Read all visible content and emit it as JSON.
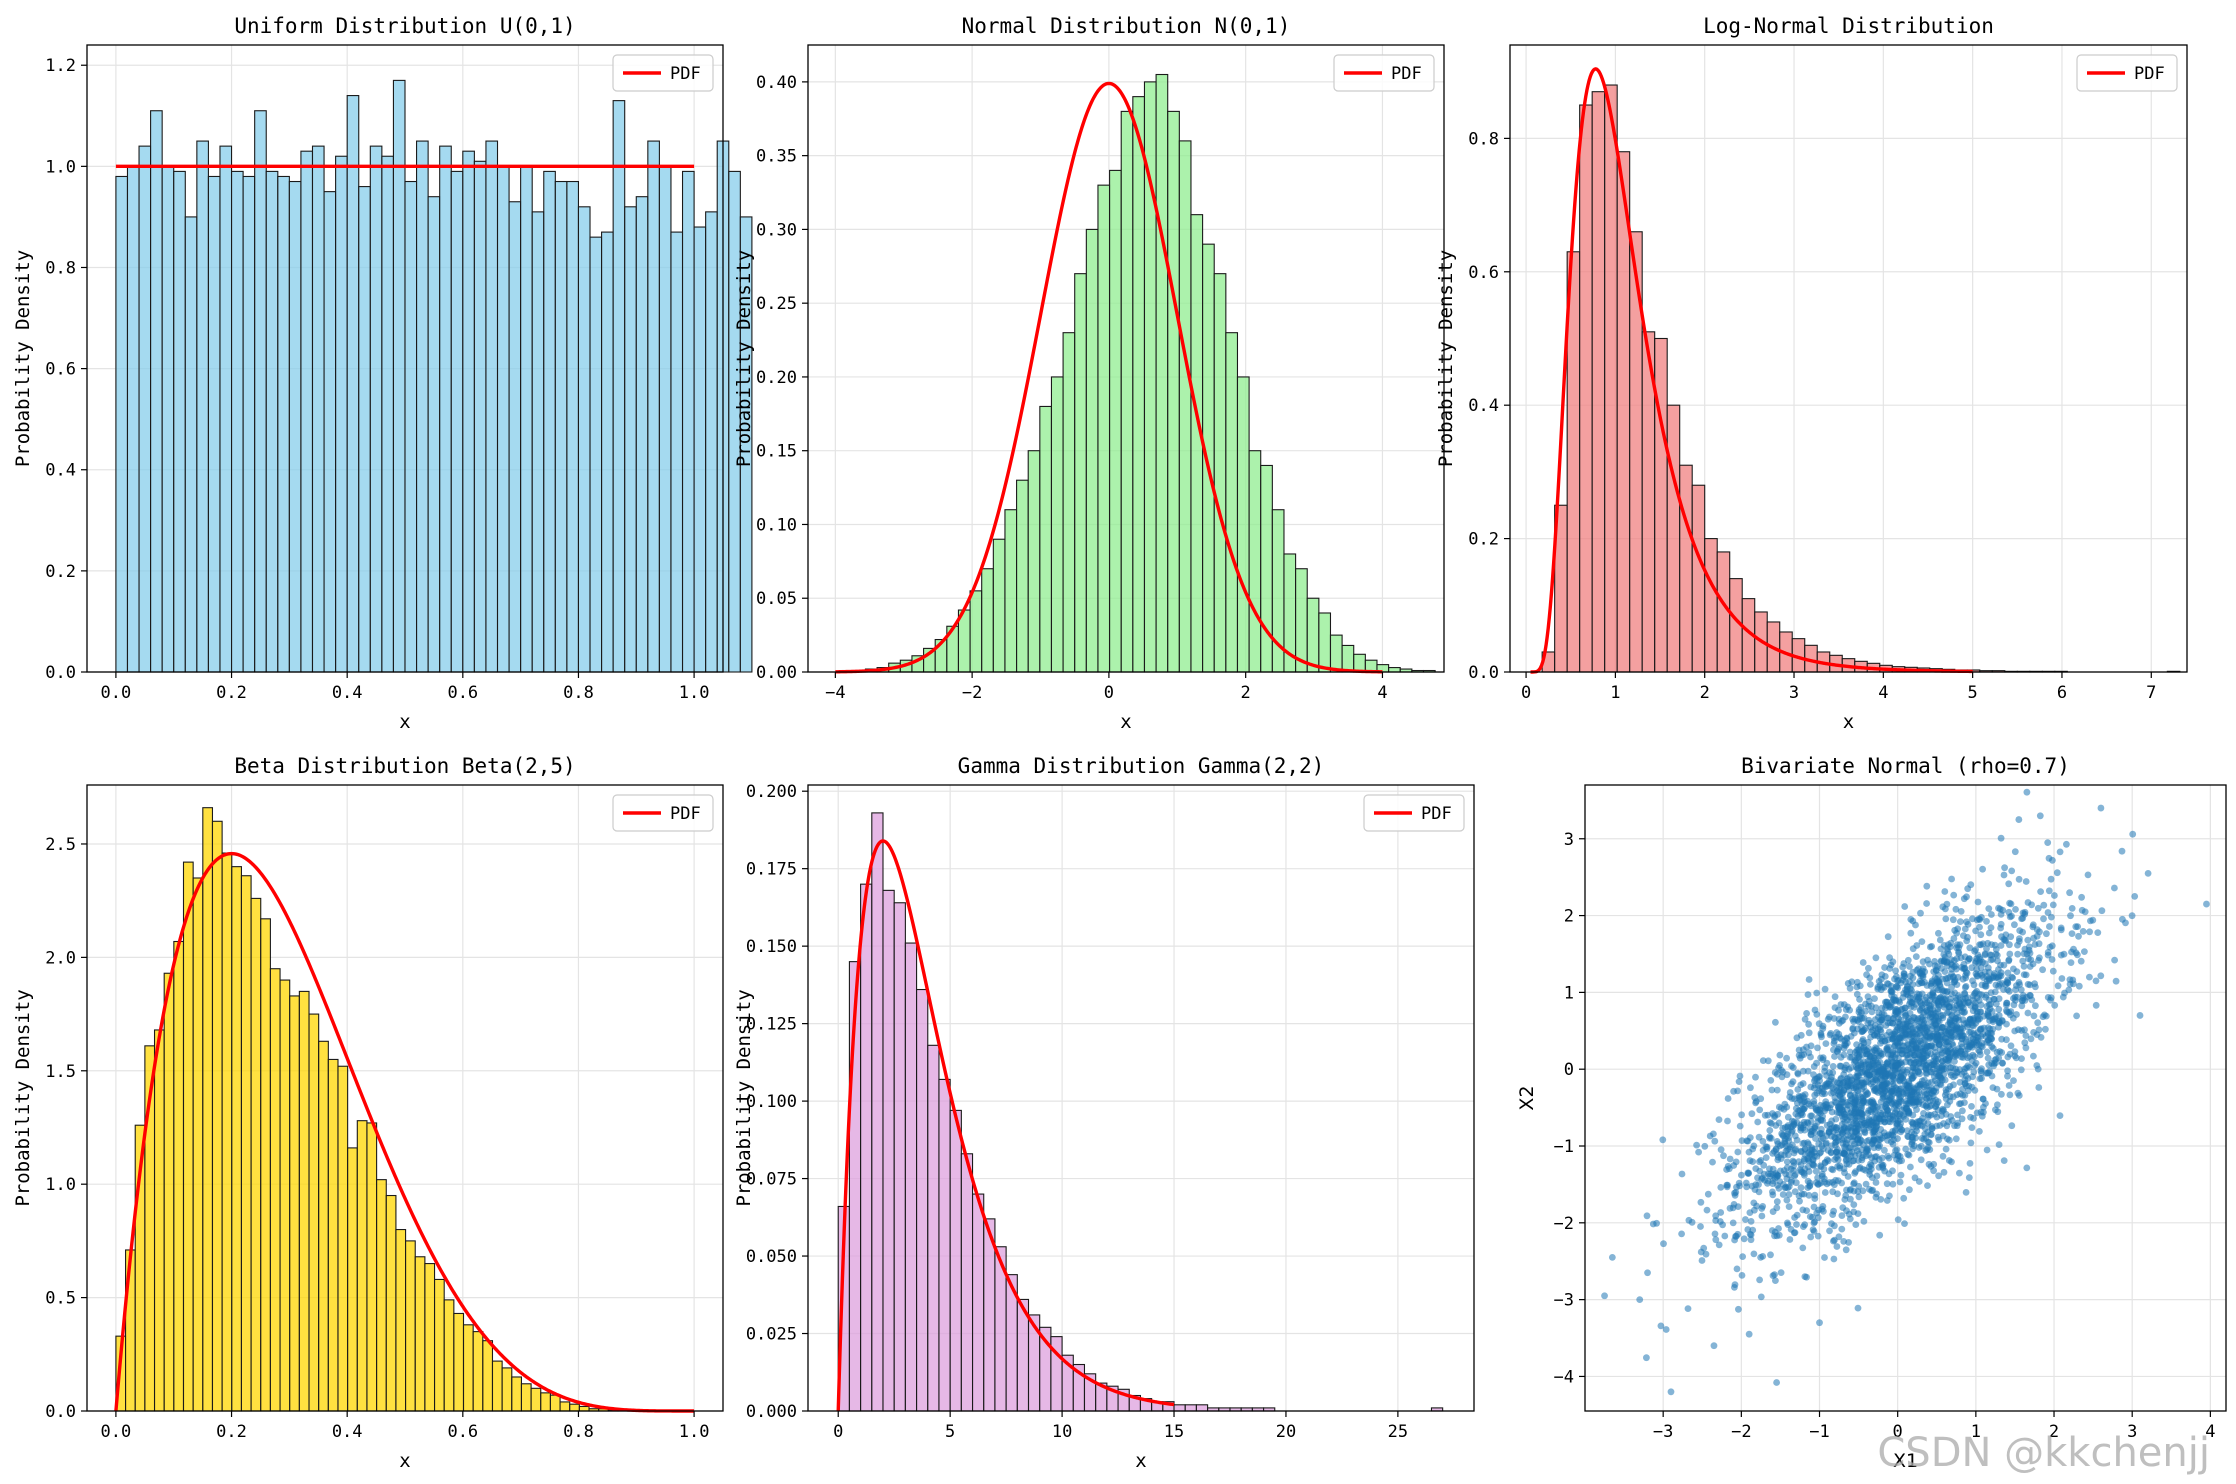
{
  "watermark": "CSDN @kkchenjj",
  "chart_data": [
    {
      "id": "uniform",
      "type": "bar",
      "title": "Uniform Distribution U(0,1)",
      "xlabel": "x",
      "ylabel": "Probability Density",
      "xlim": [
        -0.05,
        1.05
      ],
      "ylim": [
        0,
        1.24
      ],
      "xticks": [
        0,
        0.2,
        0.4,
        0.6,
        0.8,
        1.0
      ],
      "xtick_labels": [
        "0.0",
        "0.2",
        "0.4",
        "0.6",
        "0.8",
        "1.0"
      ],
      "yticks": [
        0,
        0.2,
        0.4,
        0.6,
        0.8,
        1.0,
        1.2
      ],
      "ytick_labels": [
        "0.0",
        "0.2",
        "0.4",
        "0.6",
        "0.8",
        "1.0",
        "1.2"
      ],
      "bin_start": 0,
      "bin_width": 0.02,
      "values": [
        0.98,
        1.0,
        1.04,
        1.11,
        1.0,
        0.99,
        0.9,
        1.05,
        0.98,
        1.04,
        0.99,
        0.98,
        1.11,
        0.99,
        0.98,
        0.97,
        1.03,
        1.04,
        0.95,
        1.02,
        1.14,
        0.96,
        1.04,
        1.02,
        1.17,
        0.97,
        1.05,
        0.94,
        1.04,
        0.99,
        1.03,
        1.01,
        1.05,
        1.0,
        0.93,
        1.0,
        0.91,
        0.99,
        0.97,
        0.97,
        0.92,
        0.86,
        0.87,
        1.13,
        0.92,
        0.94,
        1.05,
        1.0,
        0.87,
        0.99,
        0.88,
        0.91,
        1.05,
        0.99,
        0.9
      ],
      "bar_color": "#87ceeb",
      "pdf_line": {
        "label": "PDF",
        "color": "#ff0000",
        "x": [
          0,
          1
        ],
        "y": [
          1,
          1
        ]
      },
      "legend": "top-right"
    },
    {
      "id": "normal",
      "type": "bar",
      "title": "Normal Distribution N(0,1)",
      "xlabel": "x",
      "ylabel": "Probability Density",
      "xlim": [
        -4.4,
        4.9
      ],
      "ylim": [
        0,
        0.425
      ],
      "xticks": [
        -4,
        -2,
        0,
        2,
        4
      ],
      "xtick_labels": [
        "−4",
        "−2",
        "0",
        "2",
        "4"
      ],
      "yticks": [
        0,
        0.05,
        0.1,
        0.15,
        0.2,
        0.25,
        0.3,
        0.35,
        0.4
      ],
      "ytick_labels": [
        "0.00",
        "0.05",
        "0.10",
        "0.15",
        "0.20",
        "0.25",
        "0.30",
        "0.35",
        "0.40"
      ],
      "bin_start": -3.9,
      "bin_width": 0.17,
      "values": [
        0.001,
        0.001,
        0.002,
        0.003,
        0.006,
        0.008,
        0.011,
        0.016,
        0.022,
        0.031,
        0.042,
        0.055,
        0.07,
        0.09,
        0.11,
        0.13,
        0.15,
        0.18,
        0.2,
        0.23,
        0.27,
        0.3,
        0.33,
        0.34,
        0.38,
        0.39,
        0.4,
        0.405,
        0.38,
        0.36,
        0.31,
        0.29,
        0.27,
        0.23,
        0.2,
        0.15,
        0.14,
        0.11,
        0.08,
        0.07,
        0.05,
        0.04,
        0.025,
        0.018,
        0.012,
        0.008,
        0.005,
        0.003,
        0.002,
        0.001,
        0.001
      ],
      "bar_color": "#90ee90",
      "pdf": {
        "label": "PDF",
        "color": "#ff0000",
        "dist": "normal",
        "mu": 0,
        "sigma": 1,
        "x_range": [
          -4,
          4
        ]
      },
      "legend": "top-right"
    },
    {
      "id": "lognormal",
      "type": "bar",
      "title": "Log-Normal Distribution",
      "xlabel": "x",
      "ylabel": "Probability Density",
      "xlim": [
        -0.18,
        7.4
      ],
      "ylim": [
        0,
        0.94
      ],
      "xticks": [
        0,
        1,
        2,
        3,
        4,
        5,
        6,
        7
      ],
      "xtick_labels": [
        "0",
        "1",
        "2",
        "3",
        "4",
        "5",
        "6",
        "7"
      ],
      "yticks": [
        0,
        0.2,
        0.4,
        0.6,
        0.8
      ],
      "ytick_labels": [
        "0.0",
        "0.2",
        "0.4",
        "0.6",
        "0.8"
      ],
      "bin_start": 0.18,
      "bin_width": 0.14,
      "values": [
        0.03,
        0.25,
        0.63,
        0.85,
        0.87,
        0.88,
        0.78,
        0.66,
        0.51,
        0.5,
        0.4,
        0.31,
        0.28,
        0.2,
        0.18,
        0.14,
        0.11,
        0.09,
        0.075,
        0.06,
        0.05,
        0.04,
        0.03,
        0.025,
        0.02,
        0.016,
        0.013,
        0.01,
        0.008,
        0.007,
        0.006,
        0.005,
        0.004,
        0.003,
        0.003,
        0.002,
        0.002,
        0.001,
        0.001,
        0.001,
        0.001,
        0.001,
        0,
        0,
        0,
        0,
        0,
        0,
        0,
        0,
        0.001
      ],
      "bar_color": "#f08080",
      "pdf": {
        "label": "PDF",
        "color": "#ff0000",
        "dist": "lognormal",
        "mu": 0,
        "sigma": 0.5,
        "x_range": [
          0.05,
          5
        ]
      },
      "legend": "top-right"
    },
    {
      "id": "beta",
      "type": "bar",
      "title": "Beta Distribution Beta(2,5)",
      "xlabel": "x",
      "ylabel": "Probability Density",
      "xlim": [
        -0.05,
        1.05
      ],
      "ylim": [
        0,
        2.76
      ],
      "xticks": [
        0,
        0.2,
        0.4,
        0.6,
        0.8,
        1.0
      ],
      "xtick_labels": [
        "0.0",
        "0.2",
        "0.4",
        "0.6",
        "0.8",
        "1.0"
      ],
      "yticks": [
        0,
        0.5,
        1.0,
        1.5,
        2.0,
        2.5
      ],
      "ytick_labels": [
        "0.0",
        "0.5",
        "1.0",
        "1.5",
        "2.0",
        "2.5"
      ],
      "bin_start": 0.0,
      "bin_width": 0.0167,
      "values": [
        0.33,
        0.71,
        1.26,
        1.61,
        1.68,
        1.93,
        2.07,
        2.42,
        2.35,
        2.66,
        2.6,
        2.46,
        2.4,
        2.36,
        2.26,
        2.17,
        1.95,
        1.9,
        1.83,
        1.85,
        1.75,
        1.63,
        1.55,
        1.52,
        1.16,
        1.28,
        1.27,
        1.02,
        0.95,
        0.8,
        0.75,
        0.68,
        0.65,
        0.58,
        0.49,
        0.43,
        0.38,
        0.35,
        0.31,
        0.22,
        0.19,
        0.15,
        0.12,
        0.1,
        0.08,
        0.07,
        0.04,
        0.03,
        0.02,
        0.01,
        0.01,
        0.005,
        0.003,
        0.002
      ],
      "bar_color": "#ffd700",
      "pdf": {
        "label": "PDF",
        "color": "#ff0000",
        "dist": "beta",
        "a": 2,
        "b": 5,
        "x_range": [
          0,
          1
        ]
      },
      "legend": "top-right"
    },
    {
      "id": "gamma",
      "type": "bar",
      "title": "Gamma Distribution Gamma(2,2)",
      "xlabel": "x",
      "ylabel": "Probability Density",
      "xlim": [
        -1.35,
        28.4
      ],
      "ylim": [
        0,
        0.202
      ],
      "xticks": [
        0,
        5,
        10,
        15,
        20,
        25
      ],
      "xtick_labels": [
        "0",
        "5",
        "10",
        "15",
        "20",
        "25"
      ],
      "yticks": [
        0,
        0.025,
        0.05,
        0.075,
        0.1,
        0.125,
        0.15,
        0.175,
        0.2
      ],
      "ytick_labels": [
        "0.000",
        "0.025",
        "0.050",
        "0.075",
        "0.100",
        "0.125",
        "0.150",
        "0.175",
        "0.200"
      ],
      "bin_start": 0,
      "bin_width": 0.5,
      "values": [
        0.066,
        0.145,
        0.17,
        0.193,
        0.168,
        0.164,
        0.151,
        0.136,
        0.118,
        0.107,
        0.097,
        0.083,
        0.07,
        0.062,
        0.053,
        0.044,
        0.036,
        0.031,
        0.027,
        0.024,
        0.018,
        0.015,
        0.012,
        0.009,
        0.008,
        0.007,
        0.005,
        0.004,
        0.003,
        0.003,
        0.002,
        0.002,
        0.002,
        0.001,
        0.001,
        0.001,
        0.001,
        0.001,
        0.001,
        0,
        0,
        0,
        0,
        0,
        0,
        0,
        0,
        0,
        0,
        0,
        0,
        0,
        0,
        0.001
      ],
      "bar_color": "#dda0dd",
      "pdf": {
        "label": "PDF",
        "color": "#ff0000",
        "dist": "gamma",
        "k": 2,
        "theta": 2,
        "x_range": [
          0,
          15
        ]
      },
      "legend": "top-right"
    },
    {
      "id": "bivariate",
      "type": "scatter",
      "title": "Bivariate Normal (rho=0.7)",
      "xlabel": "X1",
      "ylabel": "X2",
      "xlim": [
        -4.0,
        4.2
      ],
      "ylim": [
        -4.45,
        3.7
      ],
      "xticks": [
        -3,
        -2,
        -1,
        0,
        1,
        2,
        3,
        4
      ],
      "xtick_labels": [
        "−3",
        "−2",
        "−1",
        "0",
        "1",
        "2",
        "3",
        "4"
      ],
      "yticks": [
        -4,
        -3,
        -2,
        -1,
        0,
        1,
        2,
        3
      ],
      "ytick_labels": [
        "−4",
        "−3",
        "−2",
        "−1",
        "0",
        "1",
        "2",
        "3"
      ],
      "rho": 0.7,
      "n_points": 3000,
      "point_color": "#1f77b4",
      "point_alpha": 0.55,
      "outliers": [
        [
          -3.75,
          -2.95
        ],
        [
          -3.65,
          -2.45
        ],
        [
          -3.3,
          -3.0
        ],
        [
          -2.9,
          -4.2
        ],
        [
          -2.35,
          -3.6
        ],
        [
          -1.0,
          -3.3
        ],
        [
          3.95,
          2.15
        ],
        [
          3.1,
          0.7
        ],
        [
          2.6,
          3.4
        ],
        [
          1.55,
          3.25
        ],
        [
          -1.9,
          -3.45
        ],
        [
          -3.2,
          -2.65
        ]
      ]
    }
  ]
}
